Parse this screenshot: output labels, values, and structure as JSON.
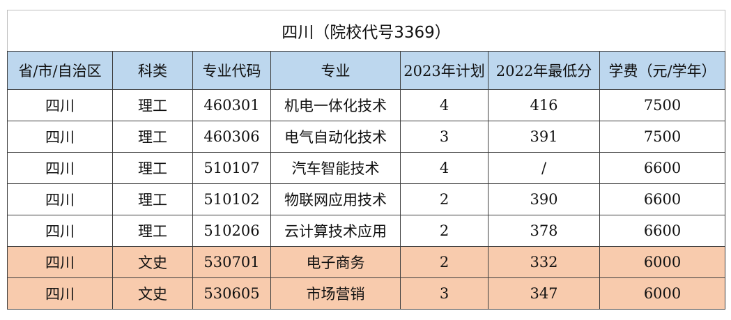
{
  "table": {
    "title": "四川（院校代号3369）",
    "headers": [
      "省/市/自治区",
      "科类",
      "专业代码",
      "专业",
      "2023年计划",
      "2022年最低分",
      "学费（元/学年）"
    ],
    "rows": [
      {
        "province": "四川",
        "category": "理工",
        "code": "460301",
        "major": "机电一体化技术",
        "plan2023": "4",
        "min2022": "416",
        "fee": "7500"
      },
      {
        "province": "四川",
        "category": "理工",
        "code": "460306",
        "major": "电气自动化技术",
        "plan2023": "3",
        "min2022": "391",
        "fee": "7500"
      },
      {
        "province": "四川",
        "category": "理工",
        "code": "510107",
        "major": "汽车智能技术",
        "plan2023": "4",
        "min2022": "/",
        "fee": "6600"
      },
      {
        "province": "四川",
        "category": "理工",
        "code": "510102",
        "major": "物联网应用技术",
        "plan2023": "2",
        "min2022": "390",
        "fee": "6600"
      },
      {
        "province": "四川",
        "category": "理工",
        "code": "510206",
        "major": "云计算技术应用",
        "plan2023": "2",
        "min2022": "378",
        "fee": "6600"
      },
      {
        "province": "四川",
        "category": "文史",
        "code": "530701",
        "major": "电子商务",
        "plan2023": "2",
        "min2022": "332",
        "fee": "6000"
      },
      {
        "province": "四川",
        "category": "文史",
        "code": "530605",
        "major": "市场营销",
        "plan2023": "3",
        "min2022": "347",
        "fee": "6000"
      }
    ],
    "colors": {
      "header_bg": "#bdd7ee",
      "liberal_arts_row_bg": "#f8cbad",
      "science_row_bg": "#ffffff"
    }
  }
}
